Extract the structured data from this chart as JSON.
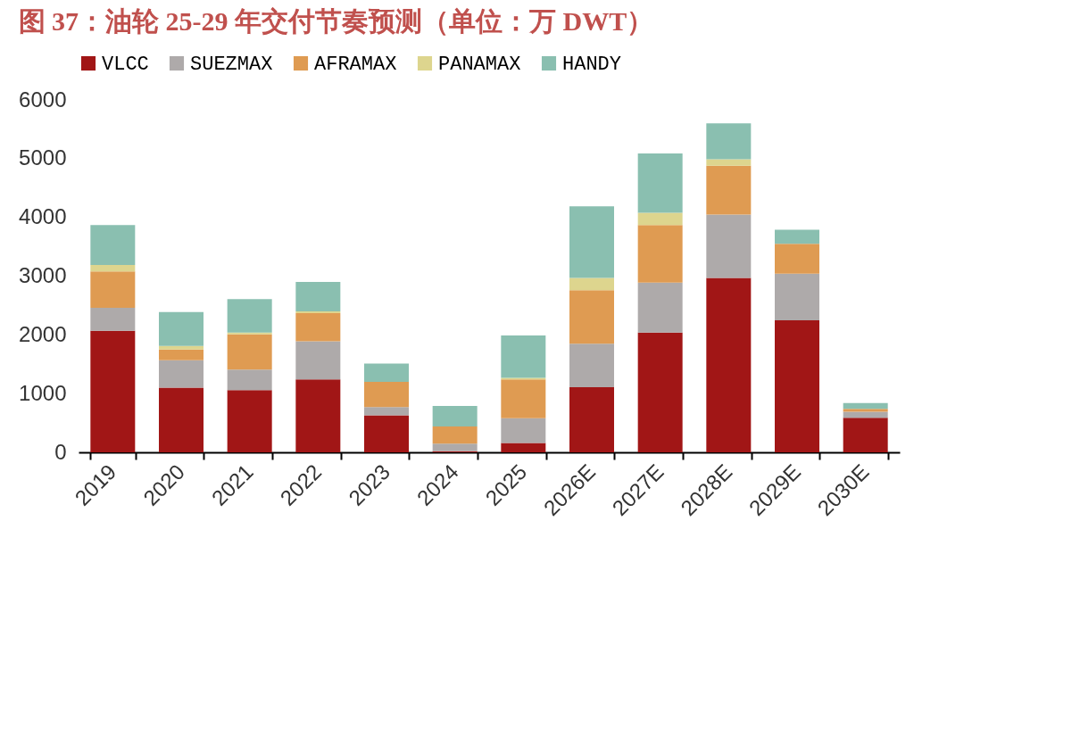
{
  "chart_data": {
    "type": "bar",
    "title": "图 37：油轮 25-29 年交付节奏预测（单位：万 DWT）",
    "categories": [
      "2019",
      "2020",
      "2021",
      "2022",
      "2023",
      "2024",
      "2025",
      "2026E",
      "2027E",
      "2028E",
      "2029E",
      "2030E"
    ],
    "stacked": true,
    "series": [
      {
        "name": "VLCC",
        "color": "#a11616",
        "values": [
          2070,
          1100,
          1060,
          1240,
          630,
          20,
          160,
          1110,
          2040,
          2970,
          2250,
          590
        ]
      },
      {
        "name": "SUEZMAX",
        "color": "#aeaaaa",
        "values": [
          390,
          470,
          350,
          650,
          140,
          130,
          420,
          740,
          850,
          1080,
          790,
          100
        ]
      },
      {
        "name": "AFRAMAX",
        "color": "#df9b52",
        "values": [
          620,
          180,
          600,
          480,
          430,
          290,
          660,
          910,
          980,
          830,
          510,
          50
        ]
      },
      {
        "name": "PANAMAX",
        "color": "#ddd58e",
        "values": [
          110,
          60,
          30,
          30,
          0,
          0,
          30,
          210,
          210,
          110,
          0,
          0
        ]
      },
      {
        "name": "HANDY",
        "color": "#8abfb0",
        "values": [
          680,
          580,
          570,
          500,
          310,
          350,
          720,
          1220,
          1010,
          610,
          240,
          100
        ]
      }
    ],
    "ylim": [
      0,
      6000
    ],
    "yticks": [
      0,
      1000,
      2000,
      3000,
      4000,
      5000,
      6000
    ],
    "grid": false,
    "legend": "top"
  }
}
